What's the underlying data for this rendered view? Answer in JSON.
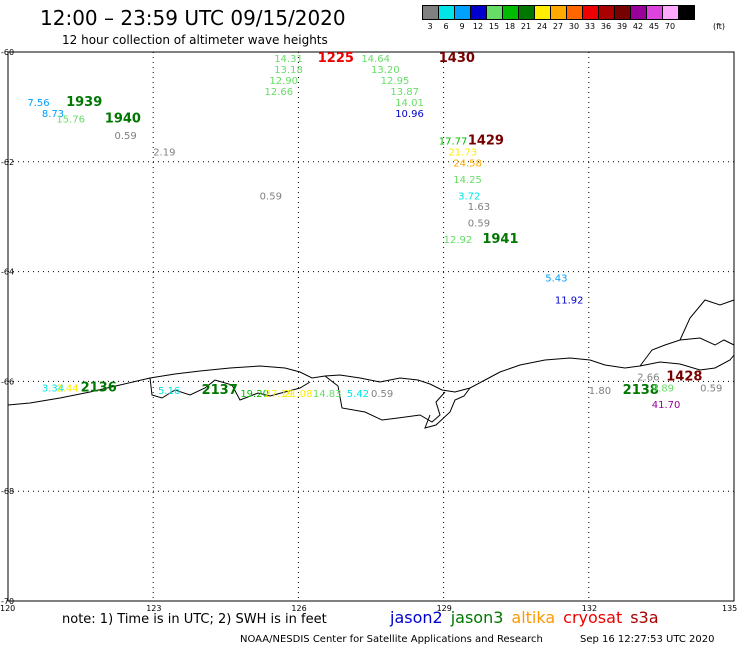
{
  "header": {
    "title": "12:00 – 23:59 UTC 09/15/2020",
    "subtitle": "12 hour collection of altimeter wave heights"
  },
  "legend": {
    "unit": "(ft)",
    "bins": [
      {
        "label": "3",
        "color": "#808080"
      },
      {
        "label": "6",
        "color": "#00e5e5"
      },
      {
        "label": "9",
        "color": "#00a0ff"
      },
      {
        "label": "12",
        "color": "#0000cc"
      },
      {
        "label": "15",
        "color": "#66dd66"
      },
      {
        "label": "18",
        "color": "#00bb00"
      },
      {
        "label": "21",
        "color": "#007700"
      },
      {
        "label": "24",
        "color": "#ffee00"
      },
      {
        "label": "27",
        "color": "#ffaa00"
      },
      {
        "label": "30",
        "color": "#ff6600"
      },
      {
        "label": "33",
        "color": "#ee0000"
      },
      {
        "label": "36",
        "color": "#aa0000"
      },
      {
        "label": "39",
        "color": "#770000"
      },
      {
        "label": "42",
        "color": "#990099"
      },
      {
        "label": "45",
        "color": "#dd44dd"
      },
      {
        "label": "70",
        "color": "#ffaaff"
      },
      {
        "label": "",
        "color": "#000000"
      }
    ]
  },
  "axes": {
    "lat_labels": [
      "-60",
      "-62",
      "-64",
      "-66",
      "-68",
      "-70"
    ],
    "lon_labels": [
      "120",
      "123",
      "126",
      "129",
      "132",
      "135"
    ]
  },
  "observations": [
    {
      "text": "14.31",
      "color": "#66dd66",
      "lon": 125.5,
      "lat": -60.0
    },
    {
      "text": "13.18",
      "color": "#66dd66",
      "lon": 125.5,
      "lat": -60.2
    },
    {
      "text": "12.90",
      "color": "#66dd66",
      "lon": 125.4,
      "lat": -60.4
    },
    {
      "text": "12.66",
      "color": "#66dd66",
      "lon": 125.3,
      "lat": -60.6
    },
    {
      "text": "1225",
      "color": "#ee0000",
      "lon": 126.4,
      "lat": -60.0,
      "bold": true
    },
    {
      "text": "14.64",
      "color": "#66dd66",
      "lon": 127.3,
      "lat": -60.0
    },
    {
      "text": "13.20",
      "color": "#66dd66",
      "lon": 127.5,
      "lat": -60.2
    },
    {
      "text": "12.95",
      "color": "#66dd66",
      "lon": 127.7,
      "lat": -60.4
    },
    {
      "text": "13.87",
      "color": "#66dd66",
      "lon": 127.9,
      "lat": -60.6
    },
    {
      "text": "14.01",
      "color": "#66dd66",
      "lon": 128.0,
      "lat": -60.8
    },
    {
      "text": "10.96",
      "color": "#0000cc",
      "lon": 128.0,
      "lat": -61.0
    },
    {
      "text": "1430",
      "color": "#770000",
      "lon": 128.9,
      "lat": -60.0,
      "bold": true
    },
    {
      "text": "17.77",
      "color": "#00bb00",
      "lon": 128.9,
      "lat": -61.5
    },
    {
      "text": "1429",
      "color": "#770000",
      "lon": 129.5,
      "lat": -61.5,
      "bold": true
    },
    {
      "text": "21.73",
      "color": "#ffee00",
      "lon": 129.1,
      "lat": -61.7
    },
    {
      "text": "24.58",
      "color": "#ffaa00",
      "lon": 129.2,
      "lat": -61.9
    },
    {
      "text": "14.25",
      "color": "#66dd66",
      "lon": 129.2,
      "lat": -62.2
    },
    {
      "text": "3.72",
      "color": "#00e5e5",
      "lon": 129.3,
      "lat": -62.5
    },
    {
      "text": "1.63",
      "color": "#808080",
      "lon": 129.5,
      "lat": -62.7
    },
    {
      "text": "0.59",
      "color": "#808080",
      "lon": 129.5,
      "lat": -63.0
    },
    {
      "text": "12.92",
      "color": "#66dd66",
      "lon": 129.0,
      "lat": -63.3
    },
    {
      "text": "1941",
      "color": "#007700",
      "lon": 129.8,
      "lat": -63.3,
      "bold": true
    },
    {
      "text": "5.43",
      "color": "#00a0ff",
      "lon": 131.1,
      "lat": -64.0
    },
    {
      "text": "11.92",
      "color": "#0000cc",
      "lon": 131.3,
      "lat": -64.4
    },
    {
      "text": "7.56",
      "color": "#00a0ff",
      "lon": 120.4,
      "lat": -60.8
    },
    {
      "text": "8.73",
      "color": "#00a0ff",
      "lon": 120.7,
      "lat": -61.0
    },
    {
      "text": "1939",
      "color": "#007700",
      "lon": 121.2,
      "lat": -60.8,
      "bold": true
    },
    {
      "text": "15.76",
      "color": "#66dd66",
      "lon": 121.0,
      "lat": -61.1
    },
    {
      "text": "1940",
      "color": "#007700",
      "lon": 122.0,
      "lat": -61.1,
      "bold": true
    },
    {
      "text": "0.59",
      "color": "#808080",
      "lon": 122.2,
      "lat": -61.4
    },
    {
      "text": "2.19",
      "color": "#808080",
      "lon": 123.0,
      "lat": -61.7
    },
    {
      "text": "0.59",
      "color": "#808080",
      "lon": 125.2,
      "lat": -62.5
    },
    {
      "text": "3.34",
      "color": "#00e5e5",
      "lon": 120.7,
      "lat": -66.0
    },
    {
      "text": "2.44",
      "color": "#ffee00",
      "lon": 121.0,
      "lat": -66.0
    },
    {
      "text": "2136",
      "color": "#007700",
      "lon": 121.5,
      "lat": -66.0,
      "bold": true
    },
    {
      "text": "5.16",
      "color": "#00e5e5",
      "lon": 123.1,
      "lat": -66.05
    },
    {
      "text": "2137",
      "color": "#007700",
      "lon": 124.0,
      "lat": -66.05,
      "bold": true
    },
    {
      "text": "19.20",
      "color": "#00bb00",
      "lon": 124.8,
      "lat": -66.1
    },
    {
      "text": "27.19",
      "color": "#ffee00",
      "lon": 125.3,
      "lat": -66.1
    },
    {
      "text": "21.08",
      "color": "#ffee00",
      "lon": 125.7,
      "lat": -66.1
    },
    {
      "text": "14.83",
      "color": "#66dd66",
      "lon": 126.3,
      "lat": -66.1
    },
    {
      "text": "5.42",
      "color": "#00e5e5",
      "lon": 127.0,
      "lat": -66.1
    },
    {
      "text": "0.59",
      "color": "#808080",
      "lon": 127.5,
      "lat": -66.1
    },
    {
      "text": "1.80",
      "color": "#808080",
      "lon": 132.0,
      "lat": -66.05
    },
    {
      "text": "2.66",
      "color": "#808080",
      "lon": 133.0,
      "lat": -65.8
    },
    {
      "text": "1428",
      "color": "#770000",
      "lon": 133.6,
      "lat": -65.8,
      "bold": true
    },
    {
      "text": "2138",
      "color": "#007700",
      "lon": 132.7,
      "lat": -66.05,
      "bold": true
    },
    {
      "text": "9.89",
      "color": "#66dd66",
      "lon": 133.3,
      "lat": -66.0
    },
    {
      "text": "0.59",
      "color": "#808080",
      "lon": 134.3,
      "lat": -66.0
    },
    {
      "text": "41.70",
      "color": "#990099",
      "lon": 133.3,
      "lat": -66.3
    }
  ],
  "footer": {
    "note": "note: 1) Time is in UTC; 2) SWH is in feet",
    "satellites": [
      {
        "name": "jason2",
        "color": "#0000cc"
      },
      {
        "name": "jason3",
        "color": "#007700"
      },
      {
        "name": "altika",
        "color": "#ff9900"
      },
      {
        "name": "cryosat",
        "color": "#ee0000"
      },
      {
        "name": "s3a",
        "color": "#aa0000"
      }
    ],
    "credit": "NOAA/NESDIS Center for Satellite Applications and Research",
    "timestamp": "Sep 16 12:27:53 UTC 2020"
  }
}
